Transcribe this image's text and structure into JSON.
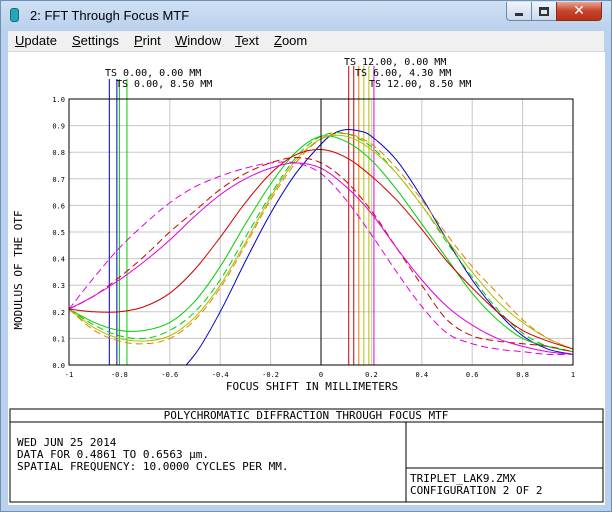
{
  "window": {
    "title": "2: FFT Through Focus MTF",
    "icons": {
      "app": "zemax-app-icon",
      "minimize": "minimize-icon",
      "maximize": "maximize-icon",
      "close": "close-icon"
    }
  },
  "menu": [
    {
      "label": "Update",
      "accel": "U",
      "rest": "pdate"
    },
    {
      "label": "Settings",
      "accel": "S",
      "rest": "ettings"
    },
    {
      "label": "Print",
      "accel": "P",
      "rest": "rint"
    },
    {
      "label": "Window",
      "accel": "W",
      "rest": "indow"
    },
    {
      "label": "Text",
      "accel": "T",
      "rest": "ext"
    },
    {
      "label": "Zoom",
      "accel": "Z",
      "rest": "oom"
    }
  ],
  "colors": {
    "blue": "#0000c8",
    "green": "#00d000",
    "yellowgreen": "#b0c000",
    "red": "#d00000",
    "orange": "#e08000",
    "magenta": "#e000e0",
    "black": "#000000",
    "grid": "#c8c8c8"
  },
  "chart_data": {
    "type": "line",
    "title": "POLYCHROMATIC DIFFRACTION THROUGH FOCUS MTF",
    "xlabel": "FOCUS SHIFT IN MILLIMETERS",
    "ylabel": "MODULUS OF THE OTF",
    "xlim": [
      -1,
      1
    ],
    "ylim": [
      0,
      1
    ],
    "x_ticks": [
      "-1",
      "-0.8",
      "-0.6",
      "-0.4",
      "-0.2",
      "0",
      "0.2",
      "0.4",
      "0.6",
      "0.8",
      "1"
    ],
    "y_ticks": [
      "0.0",
      "0.1",
      "0.2",
      "0.3",
      "0.4",
      "0.5",
      "0.6",
      "0.7",
      "0.8",
      "0.9",
      "1.0"
    ],
    "grid": true,
    "field_labels": [
      {
        "text": "TS 0.00, 0.00 MM",
        "color": "blue"
      },
      {
        "text": "TS 0.00, 8.50 MM",
        "color": "green"
      },
      {
        "text": "TS 12.00, 0.00 MM",
        "color": "red"
      },
      {
        "text": "TS 6.00, 4.30 MM",
        "color": "orange"
      },
      {
        "text": "TS 12.00, 8.50 MM",
        "color": "magenta"
      }
    ],
    "markers": [
      {
        "x": -0.84,
        "color": "blue"
      },
      {
        "x": -0.81,
        "color": "blue"
      },
      {
        "x": -0.8,
        "color": "green"
      },
      {
        "x": -0.77,
        "color": "green"
      },
      {
        "x": 0.11,
        "color": "red"
      },
      {
        "x": 0.13,
        "color": "red"
      },
      {
        "x": 0.15,
        "color": "orange"
      },
      {
        "x": 0.17,
        "color": "yellowgreen"
      },
      {
        "x": 0.19,
        "color": "yellowgreen"
      },
      {
        "x": 0.21,
        "color": "magenta"
      }
    ],
    "series": [
      {
        "color": "blue",
        "dashed": false,
        "x": [
          -0.84,
          -0.7,
          -0.6,
          -0.5,
          -0.4,
          -0.3,
          -0.2,
          -0.1,
          0,
          0.05,
          0.1,
          0.15,
          0.2,
          0.3,
          0.4,
          0.5,
          0.6,
          0.7,
          0.8,
          0.9,
          1.0
        ],
        "y": [
          0.0,
          -0.05,
          -0.05,
          0.04,
          0.2,
          0.39,
          0.57,
          0.72,
          0.83,
          0.87,
          0.885,
          0.88,
          0.86,
          0.77,
          0.63,
          0.47,
          0.32,
          0.2,
          0.11,
          0.06,
          0.04
        ]
      },
      {
        "color": "green",
        "dashed": false,
        "x": [
          -1,
          -0.9,
          -0.8,
          -0.7,
          -0.6,
          -0.5,
          -0.4,
          -0.3,
          -0.2,
          -0.1,
          0,
          0.1,
          0.2,
          0.3,
          0.4,
          0.5,
          0.6,
          0.7,
          0.8,
          0.9,
          1.0
        ],
        "y": [
          0.21,
          0.16,
          0.13,
          0.13,
          0.16,
          0.24,
          0.37,
          0.53,
          0.68,
          0.8,
          0.86,
          0.84,
          0.77,
          0.66,
          0.53,
          0.4,
          0.27,
          0.17,
          0.1,
          0.07,
          0.05
        ]
      },
      {
        "color": "green",
        "dashed": true,
        "x": [
          -1,
          -0.9,
          -0.8,
          -0.7,
          -0.6,
          -0.5,
          -0.4,
          -0.3,
          -0.2,
          -0.1,
          0,
          0.1,
          0.2,
          0.3,
          0.4,
          0.5,
          0.6,
          0.7,
          0.8,
          0.9,
          1.0
        ],
        "y": [
          0.21,
          0.15,
          0.11,
          0.1,
          0.13,
          0.2,
          0.32,
          0.48,
          0.64,
          0.78,
          0.86,
          0.87,
          0.82,
          0.72,
          0.6,
          0.46,
          0.33,
          0.21,
          0.12,
          0.07,
          0.05
        ]
      },
      {
        "color": "yellowgreen",
        "dashed": false,
        "x": [
          -1,
          -0.9,
          -0.8,
          -0.7,
          -0.6,
          -0.5,
          -0.4,
          -0.3,
          -0.2,
          -0.1,
          0,
          0.1,
          0.2,
          0.3,
          0.4,
          0.5,
          0.6,
          0.7,
          0.8,
          0.9,
          1.0
        ],
        "y": [
          0.21,
          0.14,
          0.1,
          0.09,
          0.11,
          0.18,
          0.3,
          0.46,
          0.63,
          0.77,
          0.85,
          0.86,
          0.81,
          0.72,
          0.6,
          0.47,
          0.35,
          0.24,
          0.16,
          0.1,
          0.06
        ]
      },
      {
        "color": "orange",
        "dashed": true,
        "x": [
          -1,
          -0.9,
          -0.8,
          -0.7,
          -0.6,
          -0.5,
          -0.4,
          -0.3,
          -0.2,
          -0.1,
          0,
          0.1,
          0.2,
          0.3,
          0.4,
          0.5,
          0.6,
          0.7,
          0.8,
          0.9,
          1.0
        ],
        "y": [
          0.21,
          0.13,
          0.09,
          0.08,
          0.1,
          0.17,
          0.29,
          0.45,
          0.62,
          0.76,
          0.85,
          0.87,
          0.83,
          0.74,
          0.62,
          0.49,
          0.37,
          0.27,
          0.17,
          0.1,
          0.06
        ]
      },
      {
        "color": "red",
        "dashed": false,
        "x": [
          -1,
          -0.9,
          -0.8,
          -0.7,
          -0.6,
          -0.5,
          -0.4,
          -0.3,
          -0.2,
          -0.1,
          0,
          0.1,
          0.2,
          0.3,
          0.4,
          0.5,
          0.6,
          0.7,
          0.8,
          0.9,
          1.0
        ],
        "y": [
          0.21,
          0.2,
          0.2,
          0.22,
          0.27,
          0.36,
          0.48,
          0.61,
          0.72,
          0.79,
          0.81,
          0.78,
          0.71,
          0.62,
          0.51,
          0.39,
          0.29,
          0.2,
          0.13,
          0.09,
          0.06
        ]
      },
      {
        "color": "red",
        "dashed": true,
        "x": [
          -1,
          -0.9,
          -0.8,
          -0.7,
          -0.6,
          -0.5,
          -0.4,
          -0.3,
          -0.2,
          -0.1,
          0,
          0.1,
          0.2,
          0.3,
          0.4,
          0.5,
          0.6,
          0.7,
          0.8,
          0.9,
          1.0
        ],
        "y": [
          0.21,
          0.26,
          0.33,
          0.41,
          0.5,
          0.58,
          0.66,
          0.72,
          0.76,
          0.78,
          0.76,
          0.69,
          0.58,
          0.44,
          0.3,
          0.17,
          0.11,
          0.09,
          0.08,
          0.07,
          0.05
        ]
      },
      {
        "color": "magenta",
        "dashed": false,
        "x": [
          -1,
          -0.9,
          -0.8,
          -0.7,
          -0.6,
          -0.5,
          -0.4,
          -0.3,
          -0.2,
          -0.1,
          0,
          0.1,
          0.2,
          0.3,
          0.4,
          0.5,
          0.6,
          0.7,
          0.8,
          0.9,
          1.0
        ],
        "y": [
          0.21,
          0.26,
          0.32,
          0.39,
          0.47,
          0.56,
          0.64,
          0.7,
          0.74,
          0.76,
          0.74,
          0.67,
          0.57,
          0.44,
          0.32,
          0.22,
          0.15,
          0.1,
          0.07,
          0.05,
          0.04
        ]
      },
      {
        "color": "magenta",
        "dashed": true,
        "x": [
          -1,
          -0.9,
          -0.8,
          -0.7,
          -0.6,
          -0.5,
          -0.4,
          -0.3,
          -0.2,
          -0.1,
          0,
          0.1,
          0.2,
          0.3,
          0.4,
          0.5,
          0.6,
          0.7,
          0.8,
          0.9,
          1.0
        ],
        "y": [
          0.21,
          0.33,
          0.44,
          0.53,
          0.61,
          0.67,
          0.71,
          0.74,
          0.76,
          0.76,
          0.72,
          0.62,
          0.49,
          0.35,
          0.22,
          0.12,
          0.08,
          0.06,
          0.05,
          0.04,
          0.04
        ]
      }
    ]
  },
  "info": {
    "date": "WED JUN 25 2014",
    "wavelength": "DATA FOR 0.4861 TO 0.6563 µm.",
    "frequency": "SPATIAL FREQUENCY: 10.0000 CYCLES PER MM.",
    "file": "TRIPLET_LAK9.ZMX",
    "config": "CONFIGURATION 2 OF 2"
  }
}
